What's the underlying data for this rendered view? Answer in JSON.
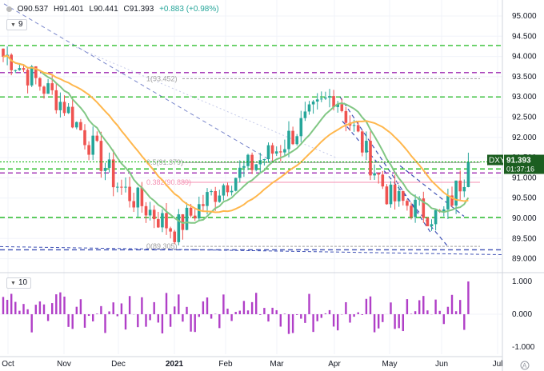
{
  "ohlc": {
    "open": "O90.537",
    "high": "H91.401",
    "low": "L90.441",
    "close": "C91.393",
    "change": "+0.883 (+0.98%)"
  },
  "main_pane_label": "9",
  "osc_pane_label": "10",
  "symbol_tag": "DXY",
  "price_tag": "91.393",
  "countdown_tag": "01:37:16",
  "colors": {
    "up": "#26a69a",
    "down": "#ef5350",
    "green_level": "#00b000",
    "purple_level": "#9c27b0",
    "sma_fast": "#81c784",
    "sma_slow": "#ffb74d",
    "channel": "#3f51b5",
    "fib_grey": "#9e9e9e",
    "fib_red": "#f48fb1",
    "histogram": "#b03fc7"
  },
  "fib_labels": [
    {
      "text": "1(93.452)",
      "price": 93.452
    },
    {
      "text": "0.5(91.379)",
      "price": 91.379
    },
    {
      "text": "0.382(90.889)",
      "price": 90.889
    },
    {
      "text": "0(89.305)",
      "price": 89.305
    }
  ],
  "chart_data": [
    {
      "type": "candlestick",
      "symbol": "DXY",
      "y_axis_ticks": [
        "95.000",
        "94.500",
        "94.000",
        "93.500",
        "93.000",
        "92.500",
        "92.000",
        "91.500",
        "91.000",
        "90.500",
        "90.000",
        "89.500",
        "89.000"
      ],
      "ylim": [
        88.8,
        95.2
      ],
      "x_axis_ticks": [
        "Oct",
        "Nov",
        "Dec",
        "2021",
        "Feb",
        "Mar",
        "Apr",
        "May",
        "Jun",
        "Jul"
      ],
      "last_close": 91.393,
      "horizontal_levels": {
        "green_dashed": [
          94.27,
          93.0,
          91.22,
          90.02
        ],
        "purple_dashed": [
          93.6,
          91.12
        ],
        "blue_dashed": [
          89.22
        ]
      },
      "overlays": [
        "sma_fast",
        "sma_slow"
      ],
      "series": [
        {
          "name": "price",
          "monthly_waypoints": [
            {
              "m": "Oct",
              "close": 94.0
            },
            {
              "m": "Nov",
              "close": 92.8
            },
            {
              "m": "Dec",
              "close": 90.8
            },
            {
              "m": "2021",
              "close": 89.7
            },
            {
              "m": "Feb",
              "close": 90.9
            },
            {
              "m": "Mar",
              "close": 91.7
            },
            {
              "m": "Apr",
              "close": 93.1
            },
            {
              "m": "May",
              "close": 90.5
            },
            {
              "m": "Jun",
              "close": 90.0
            },
            {
              "m": "last",
              "close": 91.393
            }
          ]
        }
      ]
    },
    {
      "type": "bar",
      "name": "oscillator",
      "y_axis_ticks": [
        "1.000",
        "0.000",
        "-1.000"
      ],
      "ylim": [
        -1.15,
        1.15
      ],
      "last_value": 1.0
    }
  ]
}
